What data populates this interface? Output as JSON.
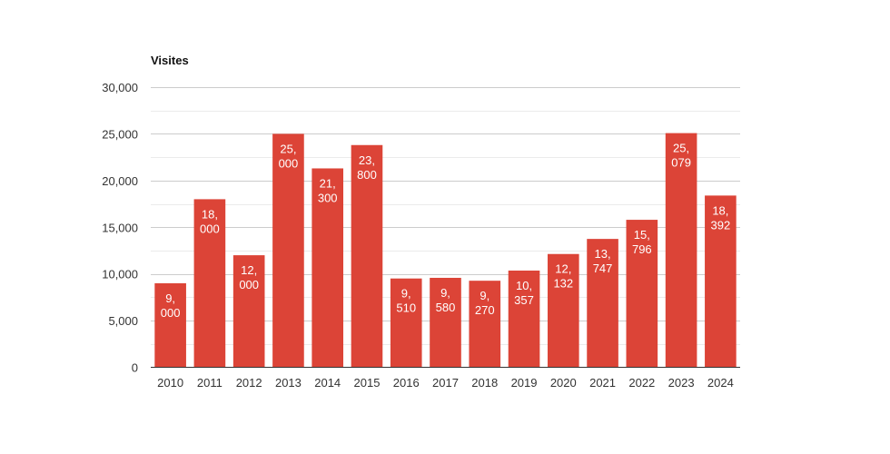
{
  "chart_data": {
    "type": "bar",
    "ylabel": "Visites",
    "categories": [
      "2010",
      "2011",
      "2012",
      "2013",
      "2014",
      "2015",
      "2016",
      "2017",
      "2018",
      "2019",
      "2020",
      "2021",
      "2022",
      "2023",
      "2024"
    ],
    "values": [
      9000,
      18000,
      12000,
      25000,
      21300,
      23800,
      9510,
      9580,
      9270,
      10357,
      12132,
      13747,
      15796,
      25079,
      18392
    ],
    "data_labels": [
      [
        "9,",
        "000"
      ],
      [
        "18,",
        "000"
      ],
      [
        "12,",
        "000"
      ],
      [
        "25,",
        "000"
      ],
      [
        "21,",
        "300"
      ],
      [
        "23,",
        "800"
      ],
      [
        "9,",
        "510"
      ],
      [
        "9,",
        "580"
      ],
      [
        "9,",
        "270"
      ],
      [
        "10,",
        "357"
      ],
      [
        "12,",
        "132"
      ],
      [
        "13,",
        "747"
      ],
      [
        "15,",
        "796"
      ],
      [
        "25,",
        "079"
      ],
      [
        "18,",
        "392"
      ]
    ],
    "yticks": [
      0,
      5000,
      10000,
      15000,
      20000,
      25000,
      30000
    ],
    "ytick_labels": [
      "0",
      "5,000",
      "10,000",
      "15,000",
      "20,000",
      "25,000",
      "30,000"
    ],
    "ylim": [
      0,
      30000
    ],
    "grid": true,
    "legend": "none",
    "bar_color": "#dc4437"
  }
}
